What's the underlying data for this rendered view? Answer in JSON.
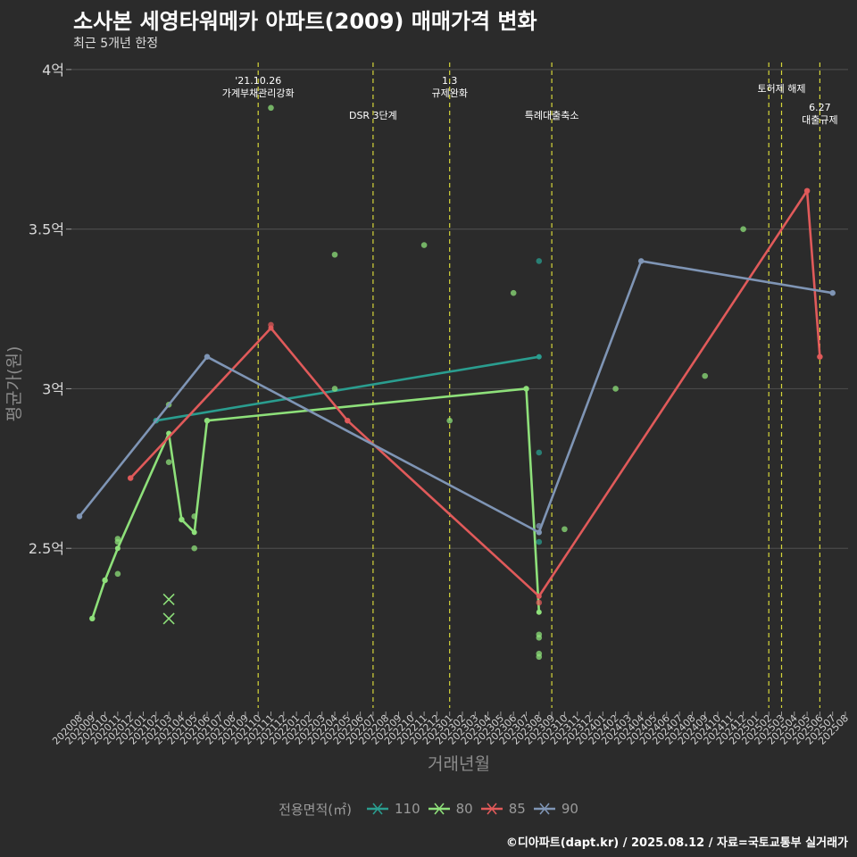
{
  "title": "소사본 세영타워메카 아파트(2009) 매매가격 변화",
  "subtitle": "최근 5개년 한정",
  "caption": "©디아파트(dapt.kr) / 2025.08.12 / 자료=국토교통부 실거래가",
  "chart_data": {
    "type": "line",
    "xlabel": "거래년월",
    "ylabel": "평균가(원)",
    "x_categories": [
      "202008",
      "202009",
      "202010",
      "202011",
      "202012",
      "202101",
      "202102",
      "202103",
      "202104",
      "202105",
      "202106",
      "202107",
      "202108",
      "202109",
      "202110",
      "202111",
      "202112",
      "202201",
      "202202",
      "202203",
      "202204",
      "202205",
      "202206",
      "202207",
      "202208",
      "202209",
      "202210",
      "202211",
      "202212",
      "202301",
      "202302",
      "202303",
      "202304",
      "202305",
      "202306",
      "202307",
      "202308",
      "202309",
      "202310",
      "202311",
      "202312",
      "202401",
      "202402",
      "202403",
      "202404",
      "202405",
      "202406",
      "202407",
      "202408",
      "202409",
      "202410",
      "202411",
      "202412",
      "202501",
      "202502",
      "202503",
      "202504",
      "202505",
      "202506",
      "202507",
      "202508"
    ],
    "ylim": [
      2.0,
      4.05
    ],
    "yticks": [
      {
        "value": 2.5,
        "label": "2.5억"
      },
      {
        "value": 3.0,
        "label": "3억"
      },
      {
        "value": 3.5,
        "label": "3.5억"
      },
      {
        "value": 4.0,
        "label": "4억"
      }
    ],
    "legend_title": "전용면적(㎡)",
    "legend_position": "bottom",
    "grid": "horizontal",
    "series": [
      {
        "name": "110",
        "color": "#2a9d8f",
        "line": [
          [
            "202102",
            2.9
          ],
          [
            "202308",
            3.1
          ]
        ],
        "points": [
          [
            "202102",
            2.9
          ],
          [
            "202308",
            3.4
          ],
          [
            "202308",
            2.8
          ],
          [
            "202308",
            2.52
          ]
        ],
        "markers_x": []
      },
      {
        "name": "80",
        "color": "#8ee07a",
        "line": [
          [
            "202009",
            2.28
          ],
          [
            "202010",
            2.4
          ],
          [
            "202011",
            2.5
          ],
          [
            "202103",
            2.86
          ],
          [
            "202104",
            2.59
          ],
          [
            "202105",
            2.55
          ],
          [
            "202106",
            2.9
          ],
          [
            "202307",
            3.0
          ],
          [
            "202308",
            2.3
          ]
        ],
        "points": [
          [
            "202009",
            2.28
          ],
          [
            "202010",
            2.4
          ],
          [
            "202011",
            2.53
          ],
          [
            "202011",
            2.42
          ],
          [
            "202011",
            2.52
          ],
          [
            "202103",
            2.95
          ],
          [
            "202103",
            2.77
          ],
          [
            "202104",
            2.59
          ],
          [
            "202105",
            2.6
          ],
          [
            "202105",
            2.5
          ],
          [
            "202106",
            2.9
          ],
          [
            "202204",
            3.42
          ],
          [
            "202204",
            3.0
          ],
          [
            "202211",
            3.45
          ],
          [
            "202301",
            2.9
          ],
          [
            "202306",
            3.3
          ],
          [
            "202307",
            3.0
          ],
          [
            "202308",
            2.23
          ],
          [
            "202308",
            2.22
          ],
          [
            "202308",
            2.17
          ],
          [
            "202308",
            2.16
          ],
          [
            "202310",
            2.56
          ],
          [
            "202402",
            3.0
          ],
          [
            "202409",
            3.04
          ],
          [
            "202412",
            3.5
          ],
          [
            "202111",
            3.88
          ]
        ],
        "markers_x": [
          [
            "202103",
            2.34
          ],
          [
            "202103",
            2.28
          ]
        ]
      },
      {
        "name": "85",
        "color": "#e05a5a",
        "line": [
          [
            "202012",
            2.72
          ],
          [
            "202111",
            3.19
          ],
          [
            "202205",
            2.9
          ],
          [
            "202308",
            2.35
          ],
          [
            "202505",
            3.62
          ],
          [
            "202506",
            3.1
          ]
        ],
        "points": [
          [
            "202012",
            2.72
          ],
          [
            "202111",
            3.2
          ],
          [
            "202205",
            2.9
          ],
          [
            "202308",
            2.33
          ],
          [
            "202505",
            3.62
          ],
          [
            "202506",
            3.1
          ]
        ],
        "markers_x": []
      },
      {
        "name": "90",
        "color": "#7f95b5",
        "line": [
          [
            "202008",
            2.6
          ],
          [
            "202106",
            3.1
          ],
          [
            "202308",
            2.55
          ],
          [
            "202404",
            3.4
          ],
          [
            "202507",
            3.3
          ]
        ],
        "points": [
          [
            "202008",
            2.6
          ],
          [
            "202106",
            3.1
          ],
          [
            "202308",
            2.55
          ],
          [
            "202308",
            2.57
          ],
          [
            "202404",
            3.4
          ],
          [
            "202507",
            3.3
          ]
        ],
        "markers_x": []
      }
    ],
    "vlines": [
      {
        "x": "202110",
        "text": [
          "'21.10.26",
          "가계부채관리강화"
        ],
        "label_row": "top"
      },
      {
        "x": "202207",
        "text": [
          "DSR 3단계"
        ],
        "label_row": "low"
      },
      {
        "x": "202301",
        "text": [
          "1.3",
          "규제완화"
        ],
        "label_row": "top"
      },
      {
        "x": "202309",
        "text": [
          "특례대출축소"
        ],
        "label_row": "low"
      },
      {
        "x": "202502",
        "text": [],
        "label_row": "top"
      },
      {
        "x": "202503",
        "text": [
          "토허제 해제"
        ],
        "label_row": "mid"
      },
      {
        "x": "202506",
        "text": [
          "6.27",
          "대출규제"
        ],
        "label_row": "right"
      }
    ]
  }
}
